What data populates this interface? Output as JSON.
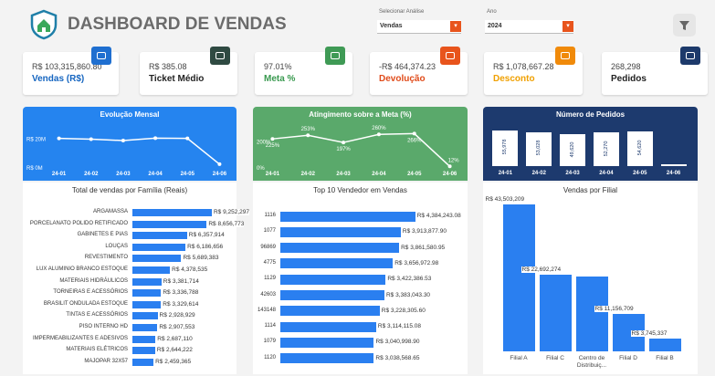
{
  "header": {
    "title": "DASHBOARD DE VENDAS"
  },
  "filters": [
    {
      "label": "Selecionar Análise",
      "value": "Vendas"
    },
    {
      "label": "Ano",
      "value": "2024"
    }
  ],
  "kpis": [
    {
      "value": "R$ 103,315,860.80",
      "label": "Vendas (R$)",
      "color": "#1565c0",
      "icon_color": "#1f6fd0"
    },
    {
      "value": "R$ 385.08",
      "label": "Ticket Médio",
      "color": "#222222",
      "icon_color": "#2f4a42"
    },
    {
      "value": "97.01%",
      "label": "Meta %",
      "color": "#3a9a50",
      "icon_color": "#3f9a55"
    },
    {
      "value": "-R$ 464,374.23",
      "label": "Devolução",
      "color": "#e04b1a",
      "icon_color": "#e8541c"
    },
    {
      "value": "R$ 1,078,667.28",
      "label": "Desconto",
      "color": "#f0a000",
      "icon_color": "#f08a0a"
    },
    {
      "value": "268,298",
      "label": "Pedidos",
      "color": "#222222",
      "icon_color": "#1d3a6b"
    }
  ],
  "chart_data": [
    {
      "type": "line",
      "title": "Evolução Mensal",
      "categories": [
        "24-01",
        "24-02",
        "24-03",
        "24-04",
        "24-05",
        "24-06"
      ],
      "values": [
        20500000,
        20000000,
        19000000,
        20700000,
        20500000,
        2600000
      ],
      "color": "#ffffff",
      "background": "#2584ef",
      "ylim": [
        0,
        26000000
      ],
      "yticks": [
        {
          "value": 0,
          "label": "R$ 0M"
        },
        {
          "value": 20000000,
          "label": "R$ 20M"
        }
      ]
    },
    {
      "type": "line",
      "title": "Atingimento sobre a Meta (%)",
      "categories": [
        "24-01",
        "24-02",
        "24-03",
        "24-04",
        "24-05",
        "24-06"
      ],
      "values": [
        225,
        253,
        197,
        260,
        266,
        12
      ],
      "value_labels": [
        "225%",
        "253%",
        "197%",
        "260%",
        "266%",
        "12%"
      ],
      "color": "#ffffff",
      "background": "#5aa96b",
      "ylim": [
        0,
        290
      ],
      "yticks": [
        {
          "value": 0,
          "label": "0%"
        },
        {
          "value": 200,
          "label": "200%"
        }
      ]
    },
    {
      "type": "bar",
      "title": "Número de Pedidos",
      "categories": [
        "24-01",
        "24-02",
        "24-03",
        "24-04",
        "24-05",
        "24-06"
      ],
      "values": [
        55978,
        53028,
        49620,
        52270,
        54620,
        2782
      ],
      "value_labels": [
        "55,978",
        "53,028",
        "49,620",
        "52,270",
        "54,620",
        null
      ],
      "color": "#ffffff",
      "background": "#1d3a6e",
      "ylim": [
        0,
        60000
      ]
    },
    {
      "type": "barh",
      "title": "Total de vendas por Família (Reais)",
      "categories": [
        "ARGAMASSA",
        "PORCELANATO POLIDO RETIFICADO",
        "GABINETES E PIAS",
        "LOUÇAS",
        "REVESTIMENTO",
        "LUX ALUMINIO BRANCO ESTOQUE",
        "MATERIAIS HIDRÁULICOS",
        "TORNEIRAS E ACESSÓRIOS",
        "BRASILIT ONDULADA ESTOQUE",
        "TINTAS E ACESSÓRIOS",
        "PISO INTERNO HD",
        "IMPERMEABILIZANTES E ADESIVOS",
        "MATERIAIS ELÉTRICOS",
        "MAJOPAR 32X57"
      ],
      "values": [
        9252297,
        8656773,
        6357914,
        6186656,
        5689383,
        4378535,
        3381714,
        3336788,
        3329614,
        2928929,
        2907553,
        2687110,
        2644222,
        2459365
      ],
      "value_labels": [
        "R$ 9,252,297",
        "R$ 8,656,773",
        "R$ 6,357,914",
        "R$ 6,186,656",
        "R$ 5,689,383",
        "R$ 4,378,535",
        "R$ 3,381,714",
        "R$ 3,336,788",
        "R$ 3,329,614",
        "R$ 2,928,929",
        "R$ 2,907,553",
        "R$ 2,687,110",
        "R$ 2,644,222",
        "R$ 2,459,365"
      ],
      "color": "#2a7ff0",
      "xlim": [
        0,
        10000000
      ]
    },
    {
      "type": "barh",
      "title": "Top 10 Vendedor em Vendas",
      "categories": [
        "1116",
        "1077",
        "96869",
        "4775",
        "1129",
        "42603",
        "143148",
        "1114",
        "1079",
        "1120"
      ],
      "values": [
        4384243.08,
        3913877.9,
        3861580.95,
        3656972.98,
        3422386.53,
        3383043.3,
        3228305.6,
        3114115.08,
        3040998.9,
        3038568.65
      ],
      "value_labels": [
        "R$ 4,384,243.08",
        "R$ 3,913,877.90",
        "R$ 3,861,580.95",
        "R$ 3,656,972.98",
        "R$ 3,422,386.53",
        "R$ 3,383,043.30",
        "R$ 3,228,305.60",
        "R$ 3,114,115.08",
        "R$ 3,040,998.90",
        "R$ 3,038,568.65"
      ],
      "color": "#2a7ff0",
      "xlim": [
        0,
        4600000
      ]
    },
    {
      "type": "bar",
      "title": "Vendas por Filial",
      "categories": [
        "Filial A",
        "Filial C",
        "Centro de Distribuiç...",
        "Filial D",
        "Filial B"
      ],
      "values": [
        43503209,
        22692274,
        22218332,
        11156709,
        3745337
      ],
      "value_labels": [
        "R$ 43,503,209",
        "R$ 22,692,274",
        null,
        "R$ 11,156,709",
        "R$ 3,745,337"
      ],
      "color": "#2a7ff0",
      "ylim": [
        0,
        46000000
      ]
    }
  ]
}
